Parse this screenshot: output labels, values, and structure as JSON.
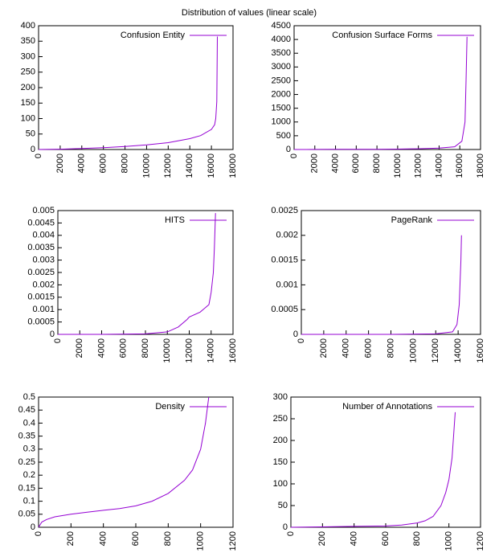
{
  "title": "Distribution of values (linear scale)",
  "chart_data": [
    {
      "type": "line",
      "legend": "upper right",
      "x": [
        0,
        2000,
        4000,
        6000,
        8000,
        10000,
        12000,
        14000,
        15000,
        16000,
        16300,
        16400,
        16500,
        16550
      ],
      "series": [
        {
          "name": "Confusion Entity",
          "color": "#9400d3",
          "values": [
            0,
            1,
            3,
            6,
            10,
            15,
            22,
            35,
            45,
            65,
            80,
            100,
            155,
            365
          ]
        }
      ],
      "xlim": [
        0,
        18000
      ],
      "xticks": [
        0,
        2000,
        4000,
        6000,
        8000,
        10000,
        12000,
        14000,
        16000,
        18000
      ],
      "ylim": [
        0,
        400
      ],
      "yticks": [
        0,
        50,
        100,
        150,
        200,
        250,
        300,
        350,
        400
      ]
    },
    {
      "type": "line",
      "legend": "upper right",
      "x": [
        0,
        2000,
        4000,
        6000,
        8000,
        10000,
        12000,
        14000,
        15500,
        16200,
        16500,
        16600,
        16700
      ],
      "series": [
        {
          "name": "Confusion Surface Forms",
          "color": "#9400d3",
          "values": [
            0,
            2,
            5,
            8,
            10,
            15,
            25,
            50,
            100,
            300,
            1000,
            2500,
            4100
          ]
        }
      ],
      "xlim": [
        0,
        18000
      ],
      "xticks": [
        0,
        2000,
        4000,
        6000,
        8000,
        10000,
        12000,
        14000,
        16000,
        18000
      ],
      "ylim": [
        0,
        4500
      ],
      "yticks": [
        0,
        500,
        1000,
        1500,
        2000,
        2500,
        3000,
        3500,
        4000,
        4500
      ]
    },
    {
      "type": "line",
      "legend": "upper right",
      "x": [
        0,
        4000,
        8000,
        10000,
        11000,
        11800,
        12000,
        13000,
        13800,
        14000,
        14200,
        14300,
        14400
      ],
      "series": [
        {
          "name": "HITS",
          "color": "#9400d3",
          "values": [
            0,
            0,
            2e-05,
            0.0001,
            0.0003,
            0.0006,
            0.0007,
            0.0009,
            0.0012,
            0.0017,
            0.0025,
            0.0035,
            0.0049
          ]
        }
      ],
      "xlim": [
        0,
        16000
      ],
      "xticks": [
        0,
        2000,
        4000,
        6000,
        8000,
        10000,
        12000,
        14000,
        16000
      ],
      "ylim": [
        0,
        0.005
      ],
      "yticks": [
        0,
        0.0005,
        0.001,
        0.0015,
        0.002,
        0.0025,
        0.003,
        0.0035,
        0.004,
        0.0045,
        0.005
      ]
    },
    {
      "type": "line",
      "legend": "upper right",
      "x": [
        0,
        8000,
        12000,
        13500,
        13900,
        14100,
        14250,
        14300
      ],
      "series": [
        {
          "name": "PageRank",
          "color": "#9400d3",
          "values": [
            0,
            0,
            1e-05,
            5e-05,
            0.0002,
            0.0006,
            0.0015,
            0.002
          ]
        }
      ],
      "xlim": [
        0,
        16000
      ],
      "xticks": [
        0,
        2000,
        4000,
        6000,
        8000,
        10000,
        12000,
        14000,
        16000
      ],
      "ylim": [
        0,
        0.0025
      ],
      "yticks": [
        0,
        0.0005,
        0.001,
        0.0015,
        0.002,
        0.0025
      ]
    },
    {
      "type": "line",
      "legend": "upper right",
      "x": [
        0,
        20,
        50,
        100,
        200,
        300,
        400,
        500,
        600,
        700,
        800,
        900,
        950,
        1000,
        1030,
        1050
      ],
      "series": [
        {
          "name": "Density",
          "color": "#9400d3",
          "values": [
            0,
            0.02,
            0.03,
            0.04,
            0.05,
            0.058,
            0.065,
            0.072,
            0.082,
            0.1,
            0.13,
            0.18,
            0.22,
            0.3,
            0.4,
            0.5
          ]
        }
      ],
      "xlim": [
        0,
        1200
      ],
      "xticks": [
        0,
        200,
        400,
        600,
        800,
        1000,
        1200
      ],
      "ylim": [
        0,
        0.5
      ],
      "yticks": [
        0,
        0.05,
        0.1,
        0.15,
        0.2,
        0.25,
        0.3,
        0.35,
        0.4,
        0.45,
        0.5
      ]
    },
    {
      "type": "line",
      "legend": "upper right",
      "x": [
        0,
        200,
        400,
        600,
        700,
        800,
        850,
        900,
        950,
        980,
        1000,
        1020,
        1040
      ],
      "series": [
        {
          "name": "Number of Annotations",
          "color": "#9400d3",
          "values": [
            0,
            1,
            2,
            3,
            5,
            10,
            15,
            25,
            50,
            80,
            110,
            160,
            265
          ]
        }
      ],
      "xlim": [
        0,
        1200
      ],
      "xticks": [
        0,
        200,
        400,
        600,
        800,
        1000,
        1200
      ],
      "ylim": [
        0,
        300
      ],
      "yticks": [
        0,
        50,
        100,
        150,
        200,
        250,
        300
      ]
    }
  ]
}
